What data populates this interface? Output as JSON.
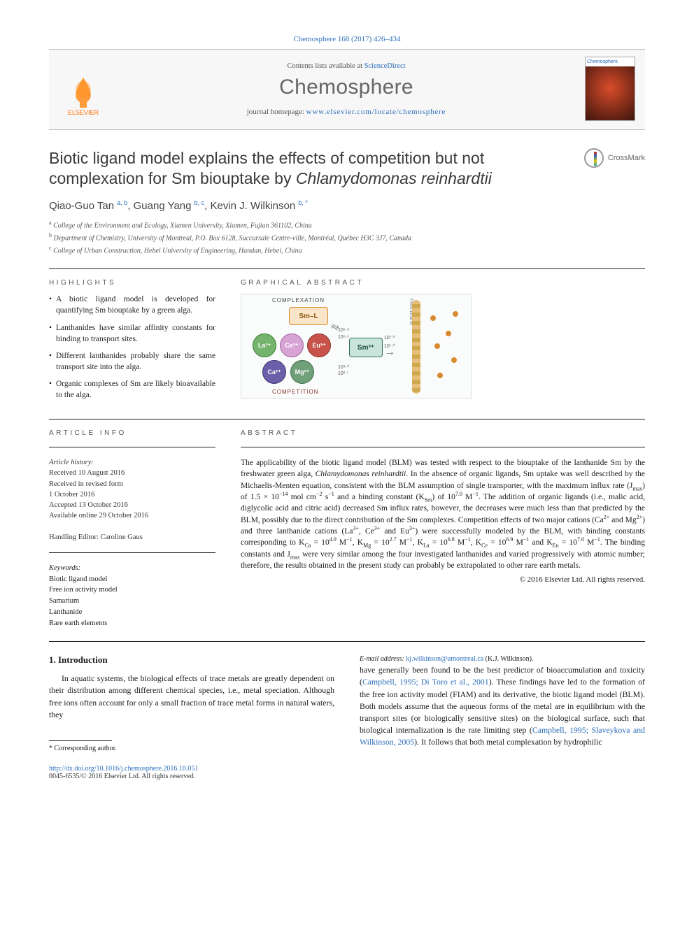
{
  "citation": "Chemosphere 168 (2017) 426–434",
  "header": {
    "contents_prefix": "Contents lists available at ",
    "contents_link": "ScienceDirect",
    "journal": "Chemosphere",
    "homepage_prefix": "journal homepage: ",
    "homepage_url": "www.elsevier.com/locate/chemosphere",
    "publisher_logo_text": "ELSEVIER",
    "cover_label": "Chemosphere"
  },
  "title_html": "Biotic ligand model explains the effects of competition but not complexation for Sm biouptake by <em>Chlamydomonas reinhardtii</em>",
  "crossmark": "CrossMark",
  "authors_html": "Qiao-Guo Tan <sup>a, b</sup>, Guang Yang <sup>b, c</sup>, Kevin J. Wilkinson <sup>b, *</sup>",
  "affiliations": [
    {
      "sup": "a",
      "text": "College of the Environment and Ecology, Xiamen University, Xiamen, Fujian 361102, China"
    },
    {
      "sup": "b",
      "text": "Department of Chemistry, University of Montreal, P.O. Box 6128, Succursale Centre-ville, Montréal, Québec H3C 3J7, Canada"
    },
    {
      "sup": "c",
      "text": "College of Urban Construction, Hebei University of Engineering, Handan, Hebei, China"
    }
  ],
  "sections": {
    "highlights": "HIGHLIGHTS",
    "graphical": "GRAPHICAL ABSTRACT",
    "artinfo": "ARTICLE INFO",
    "abstract": "ABSTRACT"
  },
  "highlights": [
    "A biotic ligand model is developed for quantifying Sm biouptake by a green alga.",
    "Lanthanides have similar affinity constants for binding to transport sites.",
    "Different lanthanides probably share the same transport site into the alga.",
    "Organic complexes of Sm are likely bioavailable to the alga."
  ],
  "graphical_abstract": {
    "label_complexation": "COMPLEXATION",
    "label_competition": "COMPETITION",
    "label_membrane": "membrane",
    "smL": "Sm–L",
    "sm": "Sm³⁺",
    "ions": [
      {
        "label": "La³⁺",
        "bg": "#74b46c",
        "border": "#3a7a34"
      },
      {
        "label": "Ce³⁺",
        "bg": "#d8a4d6",
        "border": "#a05fa0"
      },
      {
        "label": "Eu³⁺",
        "bg": "#c7534a",
        "border": "#8a2f28"
      },
      {
        "label": "Ca²⁺",
        "bg": "#6a5fa8",
        "border": "#3a3270"
      },
      {
        "label": "Mg²⁺",
        "bg": "#6fa07a",
        "border": "#3d6a47"
      }
    ],
    "binding_values": [
      "10⁶·⁸",
      "10⁶·⁹",
      "10⁷·⁰",
      "10⁷·⁰",
      "10⁴·⁰",
      "10²·⁷"
    ],
    "colors": {
      "smL_border": "#d98a2e",
      "smL_bg": "#fbe5c8",
      "sm_border": "#2a6e5a",
      "sm_bg": "#c9e4db"
    }
  },
  "article_info": {
    "history_head": "Article history:",
    "received": "Received 10 August 2016",
    "revised1": "Received in revised form",
    "revised2": "1 October 2016",
    "accepted": "Accepted 13 October 2016",
    "online": "Available online 29 October 2016",
    "editor_line": "Handling Editor: Caroline Gaus",
    "keywords_head": "Keywords:",
    "keywords": [
      "Biotic ligand model",
      "Free ion activity model",
      "Samarium",
      "Lanthanide",
      "Rare earth elements"
    ]
  },
  "abstract_html": "The applicability of the biotic ligand model (BLM) was tested with respect to the biouptake of the lanthanide Sm by the freshwater green alga, <em>Chlamydomonas reinhardtii</em>. In the absence of organic ligands, Sm uptake was well described by the Michaelis-Menten equation, consistent with the BLM assumption of single transporter, with the maximum influx rate (J<sub>max</sub>) of 1.5 × 10<sup>−14</sup> mol cm<sup>−2</sup> s<sup>−1</sup> and a binding constant (K<sub>Sm</sub>) of 10<sup>7.0</sup> M<sup>−1</sup>. The addition of organic ligands (i.e., malic acid, diglycolic acid and citric acid) decreased Sm influx rates, however, the decreases were much less than that predicted by the BLM, possibly due to the direct contribution of the Sm complexes. Competition effects of two major cations (Ca<sup>2+</sup> and Mg<sup>2+</sup>) and three lanthanide cations (La<sup>3+</sup>, Ce<sup>3+</sup> and Eu<sup>3+</sup>) were successfully modeled by the BLM, with binding constants corresponding to K<sub>Ca</sub> = 10<sup>4.0</sup> M<sup>−1</sup>, K<sub>Mg</sub> = 10<sup>2.7</sup> M<sup>−1</sup>, K<sub>La</sub> = 10<sup>6.8</sup> M<sup>−1</sup>, K<sub>Ce</sub> = 10<sup>6.9</sup> M<sup>−1</sup> and K<sub>Eu</sub> = 10<sup>7.0</sup> M<sup>−1</sup>. The binding constants and J<sub>max</sub> were very similar among the four investigated lanthanides and varied progressively with atomic number; therefore, the results obtained in the present study can probably be extrapolated to other rare earth metals.",
  "copyright": "© 2016 Elsevier Ltd. All rights reserved.",
  "intro": {
    "heading": "1. Introduction",
    "para1_html": "In aquatic systems, the biological effects of trace metals are greatly dependent on their distribution among different chemical species, i.e., metal speciation. Although free ions often account for only a small fraction of trace metal forms in natural waters, they",
    "para2_html": "have generally been found to be the best predictor of bioaccumulation and toxicity (<a>Campbell, 1995; Di Toro et al., 2001</a>). These findings have led to the formation of the free ion activity model (FIAM) and its derivative, the biotic ligand model (BLM). Both models assume that the aqueous forms of the metal are in equilibrium with the transport sites (or biologically sensitive sites) on the biological surface, such that biological internalization is the rate limiting step (<a>Campbell, 1995; Slaveykova and Wilkinson, 2005</a>). It follows that both metal complexation by hydrophilic"
  },
  "footnote": {
    "corr": "* Corresponding author.",
    "email_label": "E-mail address: ",
    "email": "kj.wilkinson@umontreal.ca",
    "email_suffix": " (K.J. Wilkinson)."
  },
  "footer": {
    "doi": "http://dx.doi.org/10.1016/j.chemosphere.2016.10.051",
    "issn_line": "0045-6535/© 2016 Elsevier Ltd. All rights reserved."
  }
}
